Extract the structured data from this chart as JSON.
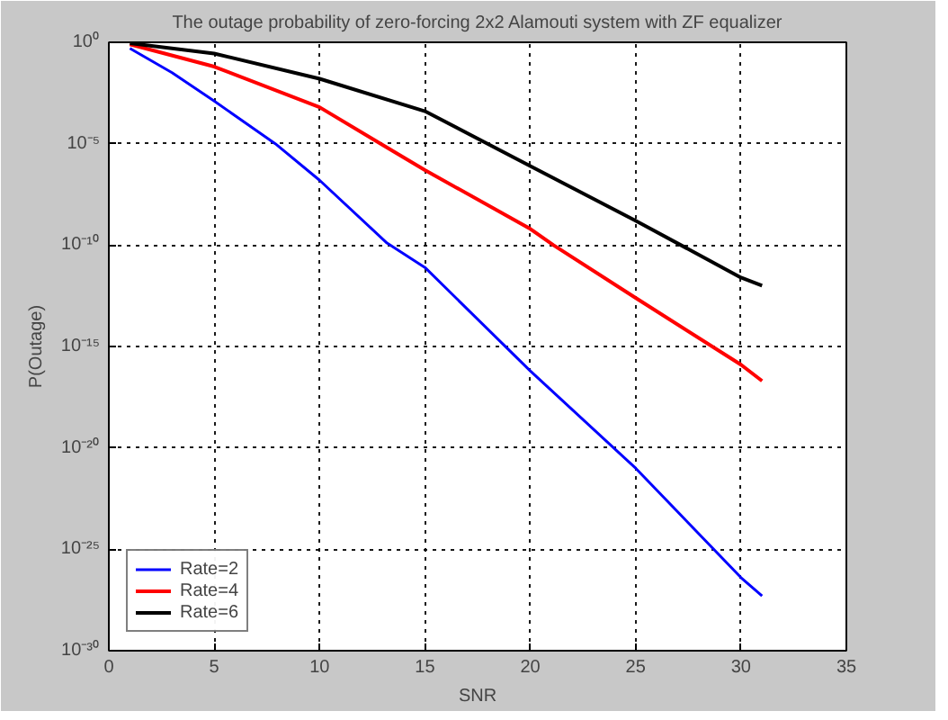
{
  "chart_data": {
    "type": "line",
    "title": "The outage probability of zero-forcing 2x2 Alamouti system with ZF equalizer",
    "xlabel": "SNR",
    "ylabel": "P(Outage)",
    "log": "y",
    "xlim": [
      0,
      35
    ],
    "xticks": [
      0,
      5,
      10,
      15,
      20,
      25,
      30,
      35
    ],
    "ylim": [
      1e-30,
      1
    ],
    "yticks": [
      {
        "value": 1,
        "label": "10⁰"
      },
      {
        "value": 1e-05,
        "label": "10⁻⁵"
      },
      {
        "value": 1e-10,
        "label": "10⁻¹⁰"
      },
      {
        "value": 1e-15,
        "label": "10⁻¹⁵"
      },
      {
        "value": 1e-20,
        "label": "10⁻²⁰"
      },
      {
        "value": 1e-25,
        "label": "10⁻²⁵"
      },
      {
        "value": 1e-30,
        "label": "10⁻³⁰"
      }
    ],
    "grid": true,
    "legend": "bottom left",
    "line_style": "solid",
    "marker": "none",
    "series": [
      {
        "name": "Rate=2",
        "color": "#0000ff",
        "x": [
          1,
          3,
          5,
          7.9,
          10,
          13.2,
          15,
          20,
          25,
          30,
          31
        ],
        "values": [
          0.5,
          0.0316,
          0.00126,
          1e-05,
          1.58e-07,
          1.26e-10,
          7.9e-12,
          6.3e-17,
          1e-21,
          4e-27,
          5e-28
        ]
      },
      {
        "name": "Rate=4",
        "color": "#ff0000",
        "x": [
          1,
          5,
          10,
          12.9,
          15,
          20,
          21.1,
          25,
          30,
          31
        ],
        "values": [
          0.79,
          0.063,
          0.00063,
          1e-05,
          5e-07,
          6.3e-10,
          1e-10,
          2.5e-13,
          1.26e-16,
          2e-17
        ]
      },
      {
        "name": "Rate=6",
        "color": "#000000",
        "x": [
          1,
          5,
          10,
          15,
          20,
          25,
          30,
          31
        ],
        "values": [
          0.9,
          0.28,
          0.016,
          0.0004,
          7.9e-07,
          1.6e-09,
          2.5e-12,
          1e-12
        ]
      }
    ]
  }
}
